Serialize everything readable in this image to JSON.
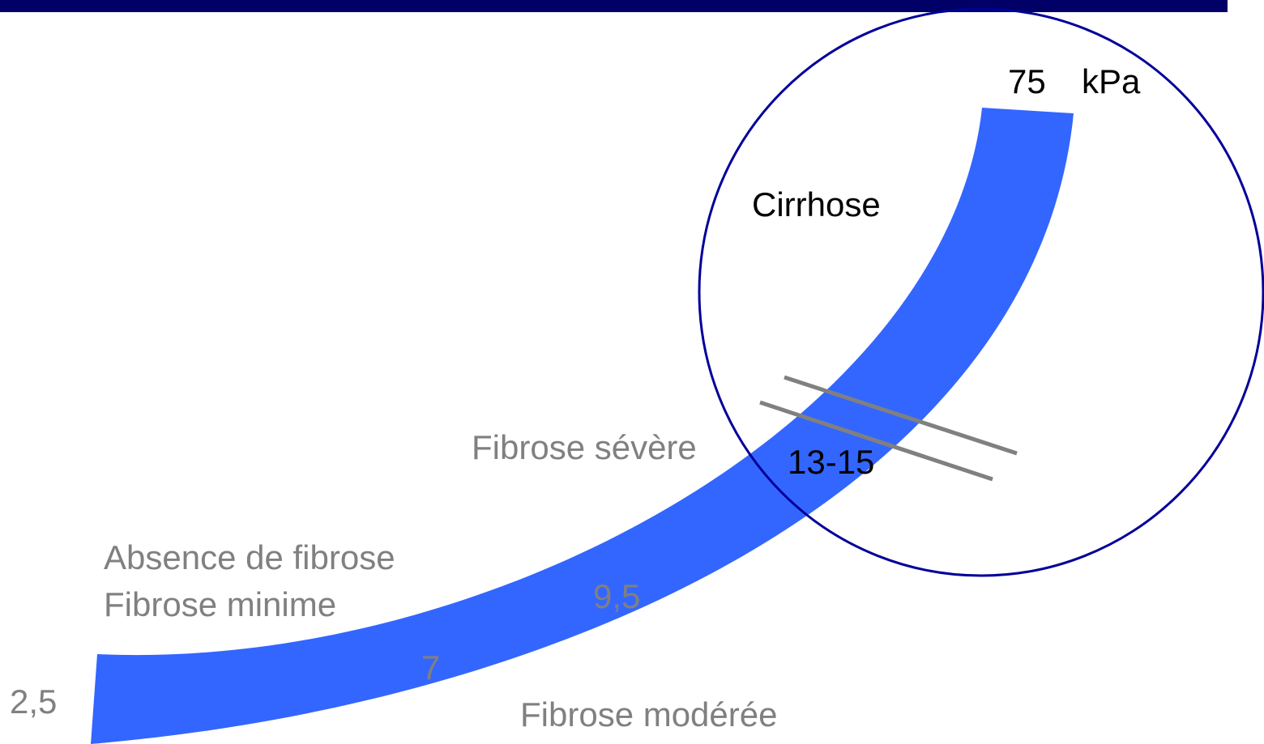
{
  "scale": {
    "max": "75",
    "unit": "kPa",
    "min": "2,5"
  },
  "zones": [
    {
      "label": "Cirrhose"
    },
    {
      "label": "Fibrose sévère",
      "threshold": "13-15"
    },
    {
      "label": "Absence de fibrose"
    },
    {
      "label": "Fibrose minime"
    },
    {
      "label": "Fibrose modérée"
    }
  ],
  "thresholds": [
    "9,5",
    "7"
  ]
}
